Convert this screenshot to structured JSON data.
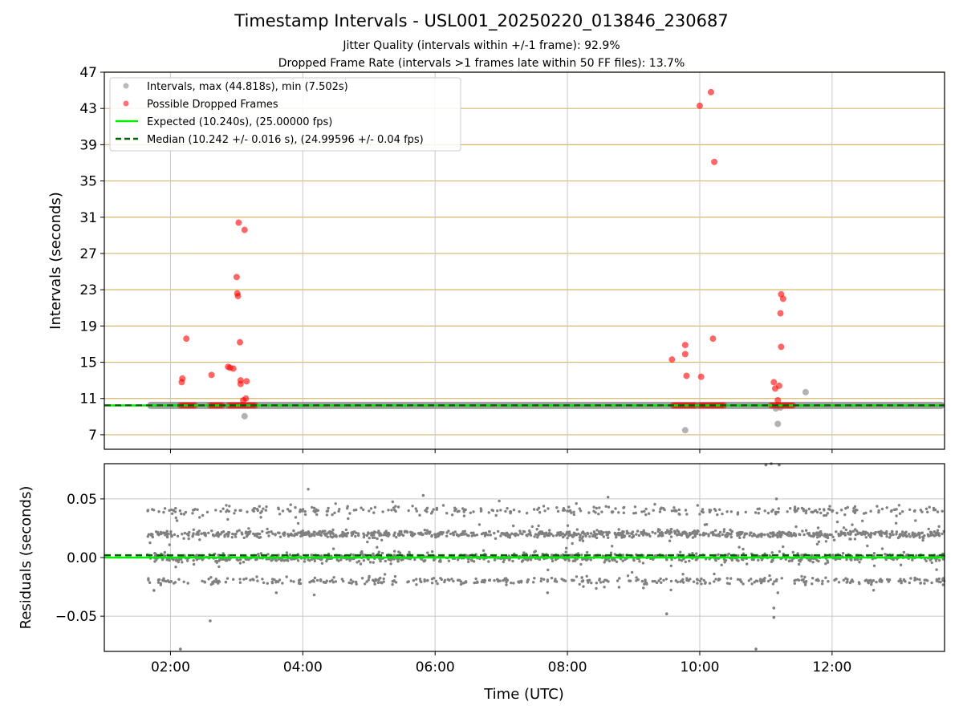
{
  "figure": {
    "title": "Timestamp Intervals - USL001_20250220_013846_230687",
    "subtitle_1": "Jitter Quality (intervals within +/-1 frame): 92.9%",
    "subtitle_2": "Dropped Frame Rate (intervals >1 frames late within 50 FF files): 13.7%"
  },
  "chart_data": [
    {
      "type": "scatter",
      "ylabel": "Intervals (seconds)",
      "xlim_hours": [
        1.0,
        13.7
      ],
      "ylim": [
        5.4,
        47
      ],
      "yticks": [
        7,
        11,
        15,
        19,
        23,
        27,
        31,
        35,
        39,
        43,
        47
      ],
      "ytick_labels": [
        "7",
        "11",
        "15",
        "19",
        "23",
        "27",
        "31",
        "35",
        "39",
        "43",
        "47"
      ],
      "xticks_hours": [
        2,
        4,
        6,
        8,
        10,
        12
      ],
      "legend_position": "upper-left",
      "legend": [
        "Intervals, max (44.818s), min (7.502s)",
        "Possible Dropped Frames",
        "Expected (10.240s), (25.00000 fps)",
        "Median (10.242 +/- 0.016 s), (24.99596 +/- 0.04 fps)"
      ],
      "expected_interval": 10.24,
      "median_interval": 10.242,
      "colors": {
        "intervals": "#808080",
        "dropped": "#ff0000",
        "expected": "#00ee00",
        "median": "#006400",
        "hgrid": "#d4b76a",
        "vgrid": "#c8c8c8"
      },
      "interval_band": {
        "x_range": [
          1.65,
          13.7
        ],
        "y_center": 10.24
      },
      "gray_outliers": [
        {
          "x": 3.12,
          "y": 9.05
        },
        {
          "x": 9.78,
          "y": 7.5
        },
        {
          "x": 11.15,
          "y": 9.9
        },
        {
          "x": 11.18,
          "y": 8.2
        },
        {
          "x": 11.22,
          "y": 10.0
        },
        {
          "x": 11.6,
          "y": 11.7
        }
      ],
      "dropped_frame_clusters": [
        {
          "x_range": [
            2.15,
            2.38
          ],
          "y": 10.24
        },
        {
          "x_range": [
            2.6,
            2.8
          ],
          "y": 10.24
        },
        {
          "x_range": [
            2.88,
            3.3
          ],
          "y": 10.24
        },
        {
          "x_range": [
            9.6,
            9.95
          ],
          "y": 10.24
        },
        {
          "x_range": [
            10.0,
            10.38
          ],
          "y": 10.24
        },
        {
          "x_range": [
            11.08,
            11.42
          ],
          "y": 10.24
        }
      ],
      "dropped_frames": [
        {
          "x": 2.17,
          "y": 12.8
        },
        {
          "x": 2.18,
          "y": 13.2
        },
        {
          "x": 2.24,
          "y": 17.6
        },
        {
          "x": 2.62,
          "y": 13.6
        },
        {
          "x": 2.87,
          "y": 14.5
        },
        {
          "x": 2.9,
          "y": 14.4
        },
        {
          "x": 2.95,
          "y": 14.3
        },
        {
          "x": 3.0,
          "y": 24.4
        },
        {
          "x": 3.01,
          "y": 22.6
        },
        {
          "x": 3.02,
          "y": 22.3
        },
        {
          "x": 3.03,
          "y": 30.4
        },
        {
          "x": 3.05,
          "y": 17.2
        },
        {
          "x": 3.06,
          "y": 12.6
        },
        {
          "x": 3.06,
          "y": 13.0
        },
        {
          "x": 3.1,
          "y": 10.8
        },
        {
          "x": 3.12,
          "y": 29.6
        },
        {
          "x": 3.14,
          "y": 11.0
        },
        {
          "x": 3.15,
          "y": 12.9
        },
        {
          "x": 9.58,
          "y": 15.3
        },
        {
          "x": 9.78,
          "y": 16.9
        },
        {
          "x": 9.78,
          "y": 15.9
        },
        {
          "x": 9.8,
          "y": 13.5
        },
        {
          "x": 10.0,
          "y": 43.3
        },
        {
          "x": 10.02,
          "y": 13.4
        },
        {
          "x": 10.17,
          "y": 44.8
        },
        {
          "x": 10.2,
          "y": 17.6
        },
        {
          "x": 10.22,
          "y": 37.1
        },
        {
          "x": 11.12,
          "y": 12.8
        },
        {
          "x": 11.14,
          "y": 12.1
        },
        {
          "x": 11.18,
          "y": 10.8
        },
        {
          "x": 11.2,
          "y": 12.4
        },
        {
          "x": 11.22,
          "y": 20.4
        },
        {
          "x": 11.23,
          "y": 16.7
        },
        {
          "x": 11.23,
          "y": 22.5
        },
        {
          "x": 11.26,
          "y": 22.0
        }
      ]
    },
    {
      "type": "scatter",
      "xlabel": "Time (UTC)",
      "ylabel": "Residuals (seconds)",
      "xlim_hours": [
        1.0,
        13.7
      ],
      "ylim": [
        -0.08,
        0.08
      ],
      "yticks": [
        -0.05,
        0.0,
        0.05
      ],
      "ytick_labels": [
        "−0.05",
        "0.00",
        "0.05"
      ],
      "xticks_hours": [
        2,
        4,
        6,
        8,
        10,
        12
      ],
      "xtick_labels": [
        "02:00",
        "04:00",
        "06:00",
        "08:00",
        "10:00",
        "12:00"
      ],
      "x_range": [
        1.65,
        13.7
      ],
      "bands": [
        {
          "y": 0.04,
          "spread": 0.002,
          "weight": 0.12
        },
        {
          "y": 0.02,
          "spread": 0.0015,
          "weight": 0.36
        },
        {
          "y": 0.0,
          "spread": 0.0018,
          "weight": 0.34
        },
        {
          "y": -0.02,
          "spread": 0.0015,
          "weight": 0.18
        }
      ],
      "outliers": [
        {
          "x": 5.82,
          "y": 0.053
        },
        {
          "x": 2.6,
          "y": -0.054
        },
        {
          "x": 9.5,
          "y": -0.048
        },
        {
          "x": 11.12,
          "y": -0.051
        },
        {
          "x": 11.16,
          "y": 0.05
        },
        {
          "x": 11.12,
          "y": -0.043
        },
        {
          "x": 10.85,
          "y": -0.078
        },
        {
          "x": 2.15,
          "y": -0.078
        },
        {
          "x": 11.18,
          "y": -0.03
        },
        {
          "x": 11.0,
          "y": 0.079
        },
        {
          "x": 11.08,
          "y": 0.08
        },
        {
          "x": 11.2,
          "y": 0.079
        },
        {
          "x": 1.75,
          "y": -0.028
        },
        {
          "x": 7.7,
          "y": -0.03
        },
        {
          "x": 3.6,
          "y": -0.03
        }
      ],
      "expected_residual": 0.0,
      "median_residual": 0.002,
      "colors": {
        "points": "#808080",
        "expected": "#00ee00",
        "median": "#006400",
        "grid": "#c8c8c8"
      }
    }
  ]
}
